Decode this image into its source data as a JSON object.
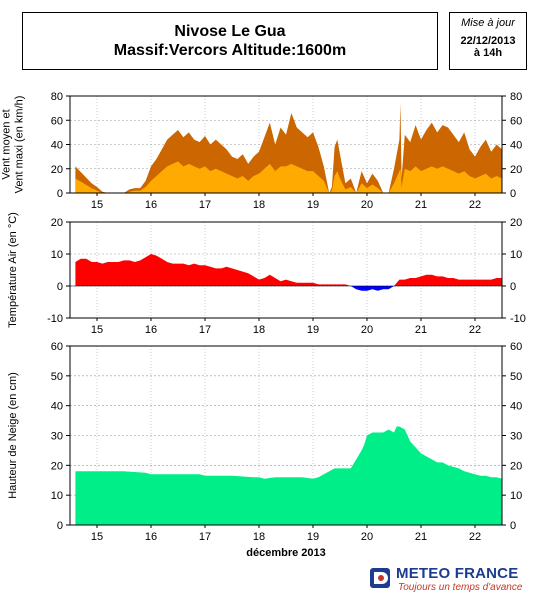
{
  "header": {
    "title_line1": "Nivose Le Gua",
    "title_line2": "Massif:Vercors Altitude:1600m"
  },
  "update": {
    "label": "Mise à jour",
    "date": "22/12/2013",
    "time": "à 14h"
  },
  "brand": {
    "name": "METEO FRANCE",
    "slogan": "Toujours un temps d'avance"
  },
  "colors": {
    "wind_max": "#cc6600",
    "wind_mean": "#ffaa00",
    "temp_positive": "#ff0000",
    "temp_negative": "#0000ff",
    "snow": "#00ee88",
    "grid": "#999999"
  },
  "chart_data": [
    {
      "type": "area",
      "ylabel": "Vent moyen et\nVent maxi (en km/h)",
      "ylim": [
        0,
        80
      ],
      "yticks": [
        "0",
        "20",
        "40",
        "60",
        "80"
      ],
      "x_tick_labels": [
        "15",
        "16",
        "17",
        "18",
        "19",
        "20",
        "21",
        "22"
      ],
      "grid": true,
      "series": [
        {
          "role": "max",
          "x": [
            14.6,
            14.75,
            14.9,
            15.0,
            15.1,
            15.2,
            15.3,
            15.5,
            15.6,
            15.7,
            15.8,
            15.9,
            16.0,
            16.1,
            16.2,
            16.3,
            16.4,
            16.5,
            16.6,
            16.7,
            16.8,
            16.9,
            17.0,
            17.1,
            17.2,
            17.3,
            17.4,
            17.5,
            17.6,
            17.7,
            17.8,
            17.9,
            18.0,
            18.1,
            18.2,
            18.3,
            18.4,
            18.5,
            18.6,
            18.7,
            18.8,
            18.9,
            19.0,
            19.1,
            19.2,
            19.3,
            19.35,
            19.4,
            19.45,
            19.5,
            19.6,
            19.7,
            19.8,
            19.9,
            20.0,
            20.1,
            20.2,
            20.3,
            20.4,
            20.5,
            20.6,
            20.62,
            20.64,
            20.7,
            20.8,
            20.9,
            21.0,
            21.1,
            21.2,
            21.3,
            21.4,
            21.5,
            21.6,
            21.7,
            21.8,
            21.9,
            22.0,
            22.1,
            22.2,
            22.3,
            22.4,
            22.5
          ],
          "y": [
            22,
            15,
            8,
            5,
            1,
            0,
            0,
            0,
            3,
            4,
            4,
            10,
            22,
            28,
            36,
            44,
            48,
            52,
            46,
            50,
            44,
            42,
            47,
            40,
            44,
            40,
            36,
            30,
            28,
            32,
            24,
            30,
            34,
            46,
            58,
            40,
            54,
            48,
            66,
            54,
            50,
            46,
            50,
            38,
            22,
            0,
            5,
            38,
            44,
            32,
            8,
            12,
            0,
            18,
            8,
            16,
            10,
            0,
            0,
            20,
            44,
            74,
            12,
            48,
            42,
            56,
            44,
            52,
            58,
            50,
            56,
            54,
            48,
            42,
            50,
            36,
            30,
            38,
            44,
            34,
            40,
            36
          ]
        },
        {
          "role": "mean",
          "x": [
            14.6,
            14.75,
            14.9,
            15.0,
            15.1,
            15.2,
            15.3,
            15.5,
            15.6,
            15.7,
            15.8,
            15.9,
            16.0,
            16.1,
            16.2,
            16.3,
            16.4,
            16.5,
            16.6,
            16.7,
            16.8,
            16.9,
            17.0,
            17.1,
            17.2,
            17.3,
            17.4,
            17.5,
            17.6,
            17.7,
            17.8,
            17.9,
            18.0,
            18.1,
            18.2,
            18.3,
            18.4,
            18.5,
            18.6,
            18.7,
            18.8,
            18.9,
            19.0,
            19.1,
            19.2,
            19.3,
            19.35,
            19.4,
            19.45,
            19.5,
            19.6,
            19.7,
            19.8,
            19.9,
            20.0,
            20.1,
            20.2,
            20.3,
            20.4,
            20.5,
            20.6,
            20.62,
            20.64,
            20.7,
            20.8,
            20.9,
            21.0,
            21.1,
            21.2,
            21.3,
            21.4,
            21.5,
            21.6,
            21.7,
            21.8,
            21.9,
            22.0,
            22.1,
            22.2,
            22.3,
            22.4,
            22.5
          ],
          "y": [
            12,
            8,
            4,
            2,
            0,
            0,
            0,
            0,
            1,
            2,
            2,
            5,
            10,
            14,
            18,
            22,
            24,
            26,
            22,
            24,
            22,
            20,
            22,
            18,
            20,
            18,
            16,
            14,
            12,
            14,
            10,
            14,
            16,
            20,
            24,
            18,
            22,
            22,
            24,
            22,
            20,
            18,
            18,
            14,
            10,
            0,
            2,
            14,
            18,
            12,
            3,
            5,
            0,
            8,
            4,
            7,
            4,
            0,
            0,
            8,
            18,
            20,
            5,
            20,
            18,
            22,
            18,
            20,
            22,
            20,
            22,
            20,
            18,
            16,
            18,
            14,
            12,
            14,
            16,
            12,
            14,
            12
          ]
        }
      ]
    },
    {
      "type": "area",
      "ylabel": "Température Air (en °C)",
      "ylim": [
        -10,
        20
      ],
      "yticks": [
        "-10",
        "0",
        "10",
        "20"
      ],
      "x_tick_labels": [
        "15",
        "16",
        "17",
        "18",
        "19",
        "20",
        "21",
        "22"
      ],
      "grid": true,
      "series": [
        {
          "role": "temperature",
          "x": [
            14.6,
            14.7,
            14.8,
            14.9,
            15.0,
            15.1,
            15.2,
            15.3,
            15.4,
            15.5,
            15.6,
            15.7,
            15.8,
            15.9,
            16.0,
            16.1,
            16.2,
            16.3,
            16.4,
            16.5,
            16.6,
            16.7,
            16.8,
            16.9,
            17.0,
            17.1,
            17.2,
            17.3,
            17.4,
            17.5,
            17.6,
            17.7,
            17.8,
            17.9,
            18.0,
            18.1,
            18.2,
            18.3,
            18.4,
            18.5,
            18.6,
            18.7,
            18.8,
            18.9,
            19.0,
            19.1,
            19.2,
            19.3,
            19.4,
            19.5,
            19.6,
            19.7,
            19.8,
            19.9,
            20.0,
            20.1,
            20.2,
            20.3,
            20.4,
            20.5,
            20.6,
            20.7,
            20.8,
            20.9,
            21.0,
            21.1,
            21.2,
            21.3,
            21.4,
            21.5,
            21.6,
            21.7,
            21.8,
            21.9,
            22.0,
            22.1,
            22.2,
            22.3,
            22.4,
            22.5
          ],
          "y": [
            7.5,
            8.5,
            8.5,
            7.5,
            7.5,
            7,
            7.5,
            7.5,
            7.5,
            8,
            8,
            7.5,
            8,
            9,
            10,
            9.5,
            8.5,
            7.5,
            7,
            7,
            7,
            6.5,
            7,
            6.5,
            6.5,
            6,
            5.5,
            5.5,
            6,
            5.5,
            5,
            4.5,
            4,
            3,
            2,
            2.5,
            3.5,
            2.5,
            1.5,
            2,
            1.5,
            1,
            1,
            1,
            1,
            0.5,
            0.5,
            0.5,
            0.5,
            0.5,
            0.5,
            0,
            -1,
            -1.5,
            -1.5,
            -1,
            -1.5,
            -1,
            -1,
            0,
            2,
            2,
            2.5,
            2.5,
            3,
            3.5,
            3.5,
            3,
            3,
            2.5,
            2.5,
            2,
            2,
            2,
            2,
            2,
            2,
            2,
            2.5,
            2.5
          ]
        }
      ]
    },
    {
      "type": "area",
      "ylabel": "Hauteur de Neige (en cm)",
      "xlabel": "décembre 2013",
      "ylim": [
        0,
        60
      ],
      "yticks": [
        "0",
        "10",
        "20",
        "30",
        "40",
        "50",
        "60"
      ],
      "x_tick_labels": [
        "15",
        "16",
        "17",
        "18",
        "19",
        "20",
        "21",
        "22"
      ],
      "grid": true,
      "series": [
        {
          "role": "snow_depth",
          "x": [
            14.6,
            15.0,
            15.5,
            15.9,
            16.0,
            16.5,
            16.9,
            17.0,
            17.5,
            17.9,
            18.0,
            18.1,
            18.3,
            18.5,
            18.8,
            19.0,
            19.1,
            19.2,
            19.4,
            19.6,
            19.7,
            19.8,
            19.9,
            19.95,
            20.0,
            20.1,
            20.2,
            20.3,
            20.4,
            20.5,
            20.55,
            20.6,
            20.7,
            20.8,
            20.9,
            21.0,
            21.1,
            21.2,
            21.3,
            21.4,
            21.5,
            21.6,
            21.7,
            21.8,
            21.9,
            22.0,
            22.1,
            22.2,
            22.3,
            22.4,
            22.5
          ],
          "y": [
            18,
            18,
            18,
            17.5,
            17,
            17,
            17,
            16.5,
            16.5,
            16,
            16,
            15.5,
            16,
            16,
            16,
            15.5,
            16,
            17,
            19,
            19,
            19,
            22,
            25,
            27,
            30,
            31,
            31,
            31,
            32,
            31,
            33,
            33,
            32,
            28,
            26,
            24,
            23,
            22,
            21,
            21,
            20,
            19.5,
            19,
            18,
            17.5,
            17,
            16.5,
            16.5,
            16,
            16,
            15.5
          ]
        }
      ]
    }
  ]
}
